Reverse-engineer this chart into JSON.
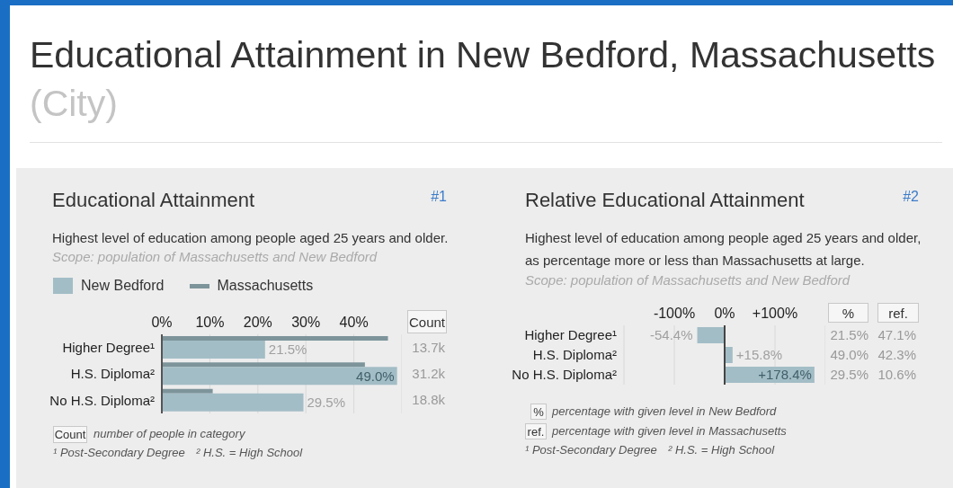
{
  "chart_data": [
    {
      "type": "bar",
      "orientation": "horizontal",
      "title": "Educational Attainment",
      "subtitle": "Highest level of education among people aged 25 years and older.",
      "categories": [
        "Higher Degree¹",
        "H.S. Diploma²",
        "No H.S. Diploma²"
      ],
      "series": [
        {
          "name": "New Bedford",
          "color": "#a3bdc6",
          "values": [
            21.5,
            49.0,
            29.5
          ],
          "value_labels": [
            "21.5%",
            "49.0%",
            "29.5%"
          ]
        },
        {
          "name": "Massachusetts",
          "color": "#7d949b",
          "values": [
            47.1,
            42.3,
            10.6
          ]
        }
      ],
      "xlim": [
        0,
        50
      ],
      "xticks": [
        {
          "value": 0,
          "label": "0%"
        },
        {
          "value": 10,
          "label": "10%"
        },
        {
          "value": 20,
          "label": "20%"
        },
        {
          "value": 30,
          "label": "30%"
        },
        {
          "value": 40,
          "label": "40%"
        }
      ],
      "grid": "x",
      "legend": "top left",
      "annotations": [
        "Educational Attainment in New Bedford, Massachusetts",
        "(City)",
        "#1",
        "Scope: population of Massachusetts and New Bedford",
        "Count",
        "Count",
        "number of people in category",
        "¹ Post-Secondary Degree",
        "² H.S. = High School",
        "13.7k",
        "31.2k",
        "18.8k"
      ]
    },
    {
      "type": "bar",
      "orientation": "horizontal",
      "title": "Relative Educational Attainment",
      "subtitle": "Highest level of education among people aged 25 years and older, as percentage more or less than Massachusetts at large.",
      "categories": [
        "Higher Degree¹",
        "H.S. Diploma²",
        "No H.S. Diploma²"
      ],
      "values": [
        -54.4,
        15.8,
        178.4
      ],
      "color": "#a3bdc6",
      "value_labels": [
        "-54.4%",
        "+15.8%",
        "+178.4%"
      ],
      "xlim": [
        -200,
        200
      ],
      "xticks": [
        {
          "value": -100,
          "label": "-100%"
        },
        {
          "value": 0,
          "label": "0%"
        },
        {
          "value": 100,
          "label": "+100%"
        }
      ],
      "grid": "x",
      "ref_lines": [
        {
          "axis": "x",
          "value": 0,
          "color": "#444444"
        }
      ],
      "annotations": [
        "#2",
        "Scope: population of Massachusetts and New Bedford",
        "%",
        "ref.",
        "%",
        "percentage with given level in New Bedford",
        "ref.",
        "percentage with given level in Massachusetts",
        "¹ Post-Secondary Degree",
        "² H.S. = High School",
        "21.5%",
        "47.1%",
        "49.0%",
        "42.3%",
        "29.5%",
        "10.6%"
      ]
    }
  ]
}
